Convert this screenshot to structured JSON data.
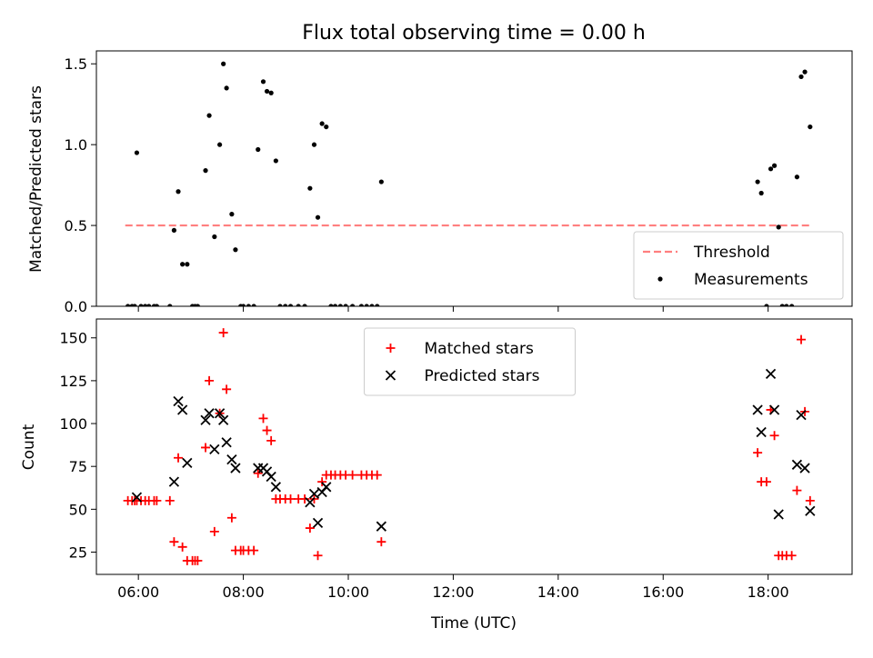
{
  "chart_data": [
    {
      "type": "scatter",
      "title": "Flux total observing time = 0.00 h",
      "xlabel": "",
      "ylabel": "Matched/Predicted stars",
      "x_unit": "hours UTC",
      "xlim": [
        5.2,
        19.6
      ],
      "ylim": [
        0,
        1.58
      ],
      "x_ticks": [
        "06:00",
        "08:00",
        "10:00",
        "12:00",
        "14:00",
        "16:00",
        "18:00"
      ],
      "x_tick_values": [
        6,
        8,
        10,
        12,
        14,
        16,
        18
      ],
      "y_ticks": [
        "0.0",
        "0.5",
        "1.0",
        "1.5"
      ],
      "y_tick_values": [
        0,
        0.5,
        1.0,
        1.5
      ],
      "legend_position": "lower-right",
      "threshold": {
        "name": "Threshold",
        "value": 0.5,
        "x_range": [
          5.75,
          18.8
        ],
        "color": "#ff7f7f",
        "style": "dashed"
      },
      "series": [
        {
          "name": "Measurements",
          "color": "#000000",
          "marker": "dot",
          "x": [
            5.8,
            5.88,
            5.93,
            5.97,
            6.05,
            6.13,
            6.2,
            6.3,
            6.35,
            6.6,
            6.68,
            6.76,
            6.84,
            6.93,
            7.03,
            7.08,
            7.13,
            7.28,
            7.35,
            7.45,
            7.55,
            7.62,
            7.68,
            7.78,
            7.85,
            7.95,
            8.0,
            8.1,
            8.2,
            8.28,
            8.38,
            8.45,
            8.53,
            8.62,
            8.7,
            8.8,
            8.9,
            9.05,
            9.17,
            9.27,
            9.35,
            9.42,
            9.5,
            9.58,
            9.67,
            9.75,
            9.85,
            9.95,
            10.08,
            10.25,
            10.35,
            10.45,
            10.55,
            10.63,
            17.8,
            17.87,
            17.97,
            18.05,
            18.12,
            18.2,
            18.27,
            18.35,
            18.45,
            18.55,
            18.63,
            18.7,
            18.8
          ],
          "y": [
            0,
            0,
            0,
            0.95,
            0,
            0,
            0,
            0,
            0,
            0,
            0.47,
            0.71,
            0.26,
            0.26,
            0,
            0,
            0,
            0.84,
            1.18,
            0.43,
            1.0,
            1.5,
            1.35,
            0.57,
            0.35,
            0,
            0,
            0,
            0,
            0.97,
            1.39,
            1.33,
            1.32,
            0.9,
            0,
            0,
            0,
            0,
            0,
            0.73,
            1.0,
            0.55,
            1.13,
            1.11,
            0,
            0,
            0,
            0,
            0,
            0,
            0,
            0,
            0,
            0.77,
            0.77,
            0.7,
            0,
            0.85,
            0.87,
            0.49,
            0,
            0,
            0,
            0.8,
            1.42,
            1.45,
            1.11
          ]
        }
      ]
    },
    {
      "type": "scatter",
      "title": "",
      "xlabel": "Time (UTC)",
      "ylabel": "Count",
      "x_unit": "hours UTC",
      "xlim": [
        5.2,
        19.6
      ],
      "ylim": [
        12,
        161
      ],
      "x_ticks": [
        "06:00",
        "08:00",
        "10:00",
        "12:00",
        "14:00",
        "16:00",
        "18:00"
      ],
      "x_tick_values": [
        6,
        8,
        10,
        12,
        14,
        16,
        18
      ],
      "y_ticks": [
        "25",
        "50",
        "75",
        "100",
        "125",
        "150"
      ],
      "y_tick_values": [
        25,
        50,
        75,
        100,
        125,
        150
      ],
      "legend_position": "upper-center",
      "series": [
        {
          "name": "Matched stars",
          "color": "#ff0000",
          "marker": "plus",
          "x": [
            5.8,
            5.88,
            5.93,
            5.97,
            6.05,
            6.13,
            6.2,
            6.3,
            6.35,
            6.6,
            6.68,
            6.76,
            6.84,
            6.93,
            7.03,
            7.08,
            7.13,
            7.28,
            7.35,
            7.45,
            7.55,
            7.62,
            7.68,
            7.78,
            7.85,
            7.95,
            8.0,
            8.1,
            8.2,
            8.28,
            8.38,
            8.45,
            8.53,
            8.62,
            8.7,
            8.8,
            8.9,
            9.05,
            9.17,
            9.27,
            9.35,
            9.42,
            9.5,
            9.58,
            9.67,
            9.75,
            9.85,
            9.95,
            10.08,
            10.25,
            10.35,
            10.45,
            10.55,
            10.63,
            17.8,
            17.87,
            17.97,
            18.05,
            18.12,
            18.2,
            18.27,
            18.35,
            18.45,
            18.55,
            18.63,
            18.7,
            18.8
          ],
          "y": [
            55,
            55,
            55,
            55,
            55,
            55,
            55,
            55,
            55,
            55,
            31,
            80,
            28,
            20,
            20,
            20,
            20,
            86,
            125,
            37,
            106,
            153,
            120,
            45,
            26,
            26,
            26,
            26,
            26,
            71,
            103,
            96,
            90,
            56,
            56,
            56,
            56,
            56,
            56,
            39,
            56,
            23,
            66,
            70,
            70,
            70,
            70,
            70,
            70,
            70,
            70,
            70,
            70,
            31,
            83,
            66,
            66,
            108,
            93,
            23,
            23,
            23,
            23,
            61,
            149,
            107,
            55
          ]
        },
        {
          "name": "Predicted stars",
          "color": "#000000",
          "marker": "x",
          "x": [
            5.97,
            6.68,
            6.76,
            6.84,
            6.93,
            7.28,
            7.35,
            7.45,
            7.55,
            7.62,
            7.68,
            7.78,
            7.85,
            8.28,
            8.38,
            8.45,
            8.53,
            8.62,
            9.27,
            9.35,
            9.42,
            9.5,
            9.58,
            10.63,
            17.8,
            17.87,
            18.05,
            18.12,
            18.2,
            18.55,
            18.63,
            18.7,
            18.8
          ],
          "y": [
            57,
            66,
            113,
            108,
            77,
            102,
            106,
            85,
            106,
            102,
            89,
            79,
            74,
            74,
            74,
            72,
            69,
            63,
            54,
            59,
            42,
            60,
            63,
            40,
            108,
            95,
            129,
            108,
            47,
            76,
            105,
            74,
            49
          ]
        }
      ]
    }
  ]
}
